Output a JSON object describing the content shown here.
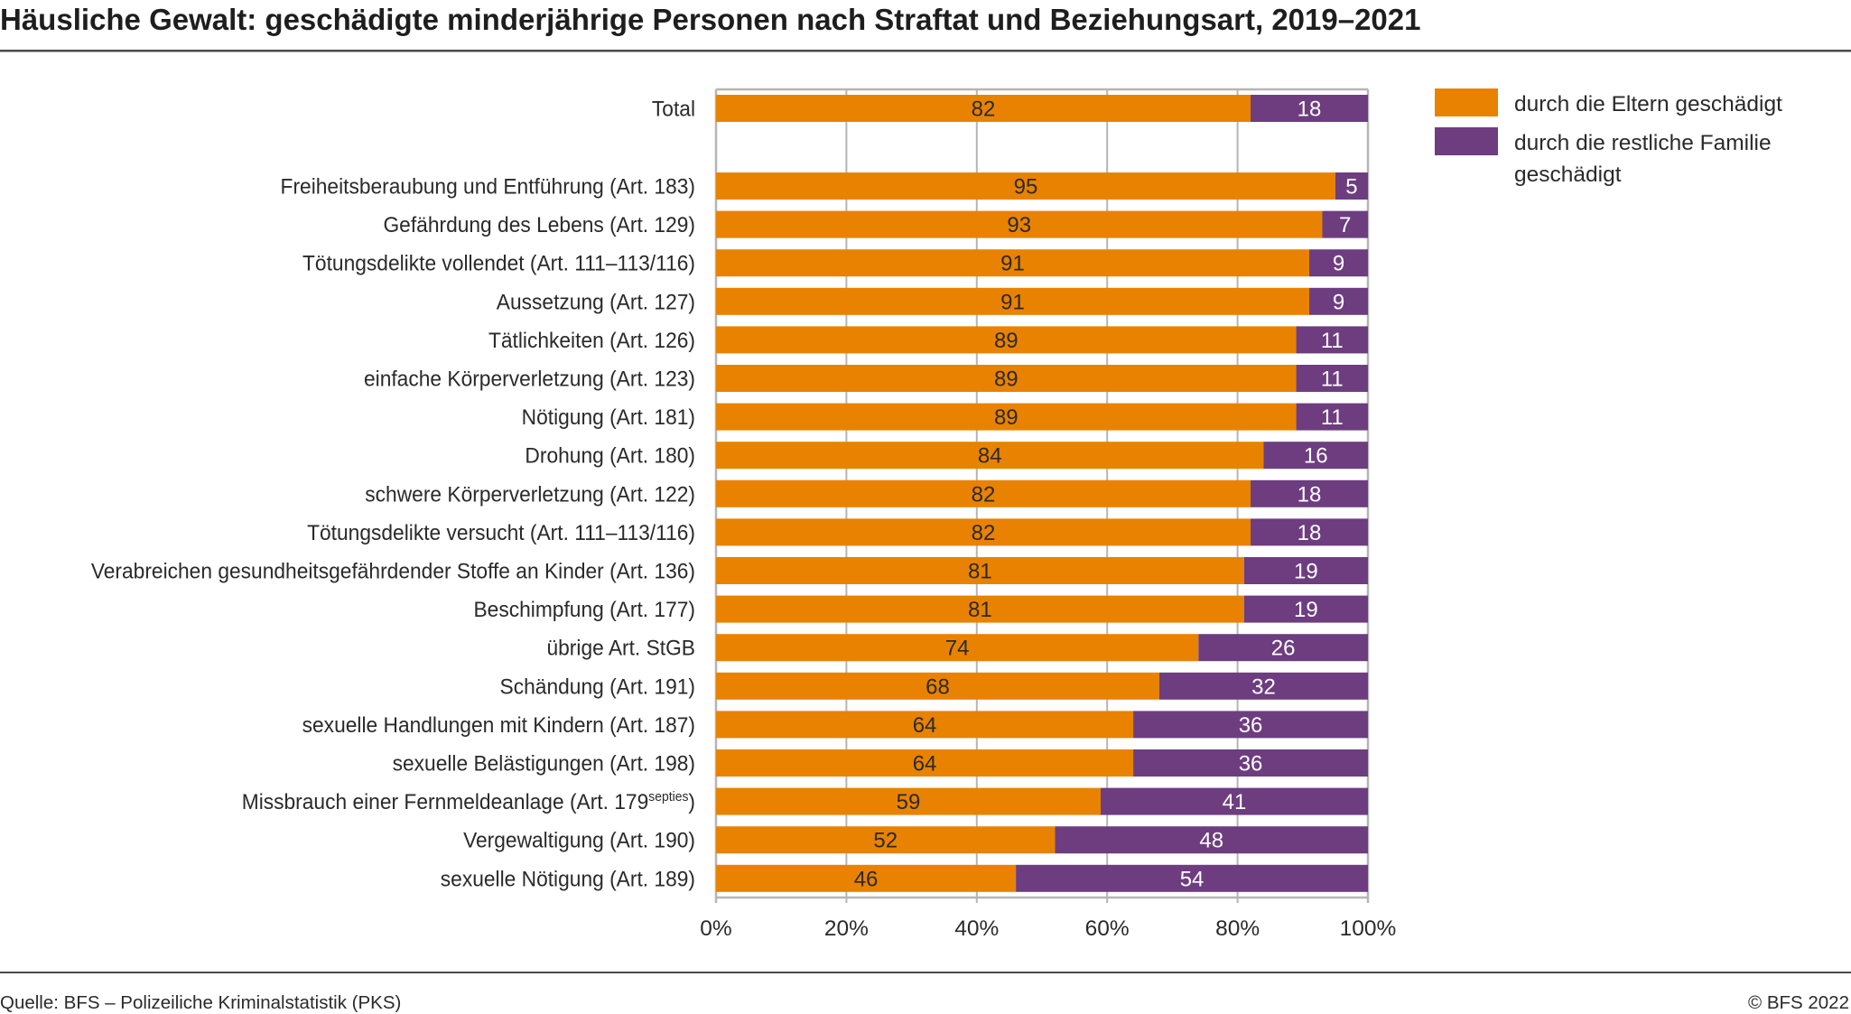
{
  "header": {
    "title": "Häusliche Gewalt: geschädigte minderjährige Personen nach Straftat und Beziehungsart, 2019–2021"
  },
  "footer": {
    "source": "Quelle: BFS – Polizeiliche Kriminalstatistik (PKS)",
    "copyright": "© BFS 2022"
  },
  "colors": {
    "parents": "#E98200",
    "family": "#6D3D80",
    "grid": "#B5B5B5",
    "text": "#2A2A2A"
  },
  "chart_data": {
    "type": "bar",
    "orientation": "horizontal",
    "stacked": "percent",
    "title": "Häusliche Gewalt: geschädigte minderjährige Personen nach Straftat und Beziehungsart, 2019–2021",
    "xlabel": "",
    "ylabel": "",
    "xlim": [
      0,
      100
    ],
    "x_ticks": [
      0,
      20,
      40,
      60,
      80,
      100
    ],
    "x_tick_labels": [
      "0%",
      "20%",
      "40%",
      "60%",
      "80%",
      "100%"
    ],
    "grid": true,
    "legend_position": "top-right",
    "categories": [
      {
        "label": "Total",
        "sup": ""
      },
      {
        "label": "Freiheitsberaubung und Entführung (Art. 183)",
        "sup": ""
      },
      {
        "label": "Gefährdung des Lebens (Art. 129)",
        "sup": ""
      },
      {
        "label": "Tötungsdelikte vollendet (Art. 111–113/116)",
        "sup": ""
      },
      {
        "label": "Aussetzung (Art. 127)",
        "sup": ""
      },
      {
        "label": "Tätlichkeiten (Art. 126)",
        "sup": ""
      },
      {
        "label": "einfache Körperverletzung (Art. 123)",
        "sup": ""
      },
      {
        "label": "Nötigung (Art. 181)",
        "sup": ""
      },
      {
        "label": "Drohung (Art. 180)",
        "sup": ""
      },
      {
        "label": "schwere Körperverletzung (Art. 122)",
        "sup": ""
      },
      {
        "label": "Tötungsdelikte versucht (Art. 111–113/116)",
        "sup": ""
      },
      {
        "label": "Verabreichen gesundheitsgefährdender Stoffe an Kinder (Art. 136)",
        "sup": ""
      },
      {
        "label": "Beschimpfung (Art. 177)",
        "sup": ""
      },
      {
        "label": "übrige Art. StGB",
        "sup": ""
      },
      {
        "label": "Schändung (Art. 191)",
        "sup": ""
      },
      {
        "label": "sexuelle Handlungen mit Kindern (Art. 187)",
        "sup": ""
      },
      {
        "label": "sexuelle Belästigungen (Art. 198)",
        "sup": ""
      },
      {
        "label": "Missbrauch einer Fernmeldeanlage (Art. 179",
        "sup": "septies",
        "suffix": ")"
      },
      {
        "label": "Vergewaltigung (Art. 190)",
        "sup": ""
      },
      {
        "label": "sexuelle Nötigung (Art. 189)",
        "sup": ""
      }
    ],
    "series": [
      {
        "name": "durch die Eltern geschädigt",
        "color": "#E98200",
        "label_color": "#2A2A2A",
        "values": [
          82,
          95,
          93,
          91,
          91,
          89,
          89,
          89,
          84,
          82,
          82,
          81,
          81,
          74,
          68,
          64,
          64,
          59,
          52,
          46
        ]
      },
      {
        "name": "durch die restliche Familie geschädigt",
        "color": "#6D3D80",
        "label_color": "#FFFFFF",
        "values": [
          18,
          5,
          7,
          9,
          9,
          11,
          11,
          11,
          16,
          18,
          18,
          19,
          19,
          26,
          32,
          36,
          36,
          41,
          48,
          54
        ]
      }
    ],
    "legend": [
      {
        "lines": [
          "durch die Eltern geschädigt"
        ]
      },
      {
        "lines": [
          "durch die restliche Familie",
          "geschädigt"
        ]
      }
    ]
  }
}
